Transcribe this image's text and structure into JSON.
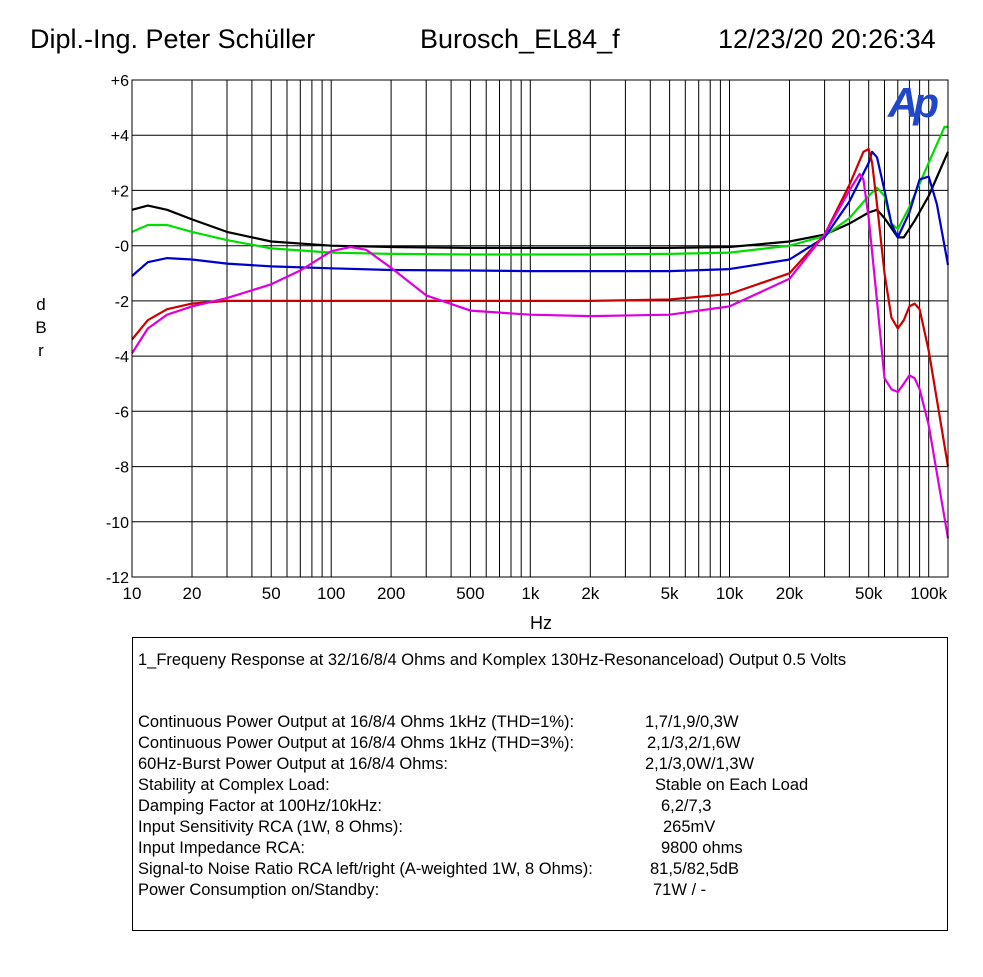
{
  "header": {
    "author": "Dipl.-Ing. Peter Schüller",
    "filename": "Burosch_EL84_f",
    "datetime": "12/23/20 20:26:34"
  },
  "logo_text": "Ap",
  "chart_data": {
    "type": "line",
    "xlabel": "Hz",
    "ylabel": "dBr",
    "x_scale": "log",
    "xlim": [
      10,
      125000
    ],
    "ylim": [
      -12,
      6
    ],
    "grid": true,
    "x_ticks": [
      10,
      20,
      50,
      100,
      200,
      500,
      1000,
      2000,
      5000,
      10000,
      20000,
      50000,
      100000
    ],
    "x_tick_labels": [
      "10",
      "20",
      "50",
      "100",
      "200",
      "500",
      "1k",
      "2k",
      "5k",
      "10k",
      "20k",
      "50k",
      "100k"
    ],
    "y_ticks": [
      6,
      4,
      2,
      0,
      -2,
      -4,
      -6,
      -8,
      -10,
      -12
    ],
    "y_tick_labels": [
      "+6",
      "+4",
      "+2",
      "-0",
      "-2",
      "-4",
      "-6",
      "-8",
      "-10",
      "-12"
    ],
    "series": [
      {
        "color": "#000000",
        "points": [
          [
            10,
            1.3
          ],
          [
            12,
            1.45
          ],
          [
            15,
            1.3
          ],
          [
            20,
            0.95
          ],
          [
            30,
            0.5
          ],
          [
            50,
            0.15
          ],
          [
            100,
            0.0
          ],
          [
            200,
            -0.05
          ],
          [
            500,
            -0.08
          ],
          [
            1000,
            -0.08
          ],
          [
            2000,
            -0.08
          ],
          [
            5000,
            -0.08
          ],
          [
            10000,
            -0.05
          ],
          [
            20000,
            0.15
          ],
          [
            30000,
            0.4
          ],
          [
            40000,
            0.8
          ],
          [
            50000,
            1.2
          ],
          [
            55000,
            1.3
          ],
          [
            60000,
            1.0
          ],
          [
            70000,
            0.3
          ],
          [
            75000,
            0.3
          ],
          [
            85000,
            0.9
          ],
          [
            100000,
            1.8
          ],
          [
            125000,
            3.4
          ]
        ]
      },
      {
        "color": "#00dd00",
        "points": [
          [
            10,
            0.5
          ],
          [
            12,
            0.75
          ],
          [
            15,
            0.75
          ],
          [
            20,
            0.5
          ],
          [
            30,
            0.2
          ],
          [
            50,
            -0.1
          ],
          [
            100,
            -0.25
          ],
          [
            200,
            -0.3
          ],
          [
            500,
            -0.32
          ],
          [
            1000,
            -0.32
          ],
          [
            2000,
            -0.32
          ],
          [
            5000,
            -0.3
          ],
          [
            10000,
            -0.25
          ],
          [
            20000,
            0.0
          ],
          [
            30000,
            0.35
          ],
          [
            40000,
            1.0
          ],
          [
            50000,
            1.8
          ],
          [
            55000,
            2.1
          ],
          [
            60000,
            1.8
          ],
          [
            65000,
            0.8
          ],
          [
            70000,
            0.6
          ],
          [
            80000,
            1.4
          ],
          [
            100000,
            3.0
          ],
          [
            120000,
            4.3
          ],
          [
            125000,
            4.3
          ]
        ]
      },
      {
        "color": "#0000cc",
        "points": [
          [
            10,
            -1.1
          ],
          [
            12,
            -0.6
          ],
          [
            15,
            -0.45
          ],
          [
            20,
            -0.5
          ],
          [
            30,
            -0.65
          ],
          [
            50,
            -0.75
          ],
          [
            100,
            -0.82
          ],
          [
            200,
            -0.88
          ],
          [
            500,
            -0.9
          ],
          [
            1000,
            -0.92
          ],
          [
            2000,
            -0.92
          ],
          [
            5000,
            -0.92
          ],
          [
            10000,
            -0.85
          ],
          [
            20000,
            -0.5
          ],
          [
            30000,
            0.3
          ],
          [
            40000,
            1.6
          ],
          [
            50000,
            3.0
          ],
          [
            52000,
            3.4
          ],
          [
            55000,
            3.2
          ],
          [
            60000,
            2.0
          ],
          [
            65000,
            0.8
          ],
          [
            70000,
            0.3
          ],
          [
            80000,
            1.2
          ],
          [
            90000,
            2.4
          ],
          [
            100000,
            2.5
          ],
          [
            110000,
            1.5
          ],
          [
            125000,
            -0.7
          ]
        ]
      },
      {
        "color": "#cc0000",
        "points": [
          [
            10,
            -3.4
          ],
          [
            12,
            -2.7
          ],
          [
            15,
            -2.3
          ],
          [
            20,
            -2.1
          ],
          [
            30,
            -2.0
          ],
          [
            100,
            -2.0
          ],
          [
            200,
            -2.0
          ],
          [
            500,
            -2.0
          ],
          [
            1000,
            -2.0
          ],
          [
            2000,
            -2.0
          ],
          [
            5000,
            -1.95
          ],
          [
            10000,
            -1.75
          ],
          [
            20000,
            -1.0
          ],
          [
            30000,
            0.4
          ],
          [
            40000,
            2.2
          ],
          [
            47000,
            3.4
          ],
          [
            50000,
            3.5
          ],
          [
            52000,
            3.0
          ],
          [
            55000,
            1.5
          ],
          [
            60000,
            -1.0
          ],
          [
            65000,
            -2.6
          ],
          [
            70000,
            -3.0
          ],
          [
            75000,
            -2.7
          ],
          [
            80000,
            -2.2
          ],
          [
            85000,
            -2.1
          ],
          [
            90000,
            -2.3
          ],
          [
            100000,
            -3.8
          ],
          [
            125000,
            -8.0
          ]
        ]
      },
      {
        "color": "#dd00dd",
        "points": [
          [
            10,
            -3.9
          ],
          [
            12,
            -3.0
          ],
          [
            15,
            -2.5
          ],
          [
            20,
            -2.2
          ],
          [
            30,
            -1.9
          ],
          [
            50,
            -1.4
          ],
          [
            70,
            -0.9
          ],
          [
            100,
            -0.2
          ],
          [
            125,
            -0.05
          ],
          [
            150,
            -0.15
          ],
          [
            200,
            -0.8
          ],
          [
            300,
            -1.8
          ],
          [
            500,
            -2.35
          ],
          [
            1000,
            -2.5
          ],
          [
            2000,
            -2.55
          ],
          [
            5000,
            -2.5
          ],
          [
            10000,
            -2.2
          ],
          [
            20000,
            -1.2
          ],
          [
            30000,
            0.4
          ],
          [
            40000,
            2.0
          ],
          [
            45000,
            2.6
          ],
          [
            47000,
            2.4
          ],
          [
            50000,
            1.0
          ],
          [
            55000,
            -2.0
          ],
          [
            60000,
            -4.8
          ],
          [
            65000,
            -5.2
          ],
          [
            70000,
            -5.3
          ],
          [
            75000,
            -5.0
          ],
          [
            80000,
            -4.7
          ],
          [
            85000,
            -4.8
          ],
          [
            90000,
            -5.2
          ],
          [
            100000,
            -6.5
          ],
          [
            125000,
            -10.6
          ]
        ]
      }
    ]
  },
  "info": {
    "description": "1_Frequeny Response at 32/16/8/4 Ohms and Komplex 130Hz-Resonanceload) Output 0.5 Volts",
    "rows": [
      {
        "label": "Continuous Power Output at 16/8/4 Ohms 1kHz (THD=1%):",
        "value": "1,7/1,9/0,3W"
      },
      {
        "label": "Continuous Power Output at 16/8/4 Ohms 1kHz (THD=3%):",
        "value": "2,1/3,2/1,6W"
      },
      {
        "label": "60Hz-Burst Power Output at 16/8/4 Ohms:",
        "value": "2,1/3,0W/1,3W"
      },
      {
        "label": "Stability at Complex Load:",
        "value": "Stable on Each Load"
      },
      {
        "label": "Damping Factor at 100Hz/10kHz:",
        "value": "6,2/7,3"
      },
      {
        "label": "Input Sensitivity RCA (1W, 8 Ohms):",
        "value": "265mV"
      },
      {
        "label": "Input Impedance RCA:",
        "value": "9800 ohms"
      },
      {
        "label": "Signal-to Noise Ratio RCA left/right (A-weighted 1W, 8 Ohms):",
        "value": "81,5/82,5dB"
      },
      {
        "label": "Power Consumption on/Standby:",
        "value": "71W / -"
      }
    ]
  }
}
